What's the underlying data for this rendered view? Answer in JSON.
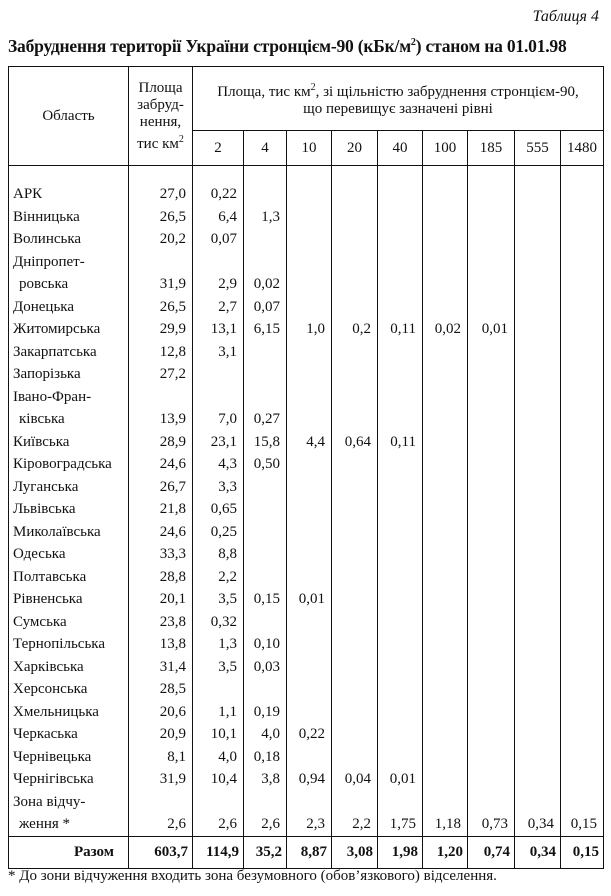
{
  "caption": "Таблиця 4",
  "title": "Забруднення території України стронцієм-90 (кБк/м",
  "title_sup": "2",
  "title_end": ") станом на 01.01.98",
  "header": {
    "region": "Область",
    "area": "Площа забруд-нення, тис км",
    "area_sup": "2",
    "levels_title": "Площа, тис  км",
    "levels_sup": "2",
    "levels_title_end": ", зі щільністю забруднення стронцієм-90,  що перевищує зазначені рівні",
    "levels": [
      "2",
      "4",
      "10",
      "20",
      "40",
      "100",
      "185",
      "555",
      "1480"
    ]
  },
  "rows": [
    {
      "name": [
        "АРК"
      ],
      "v": [
        "27,0",
        "0,22",
        "",
        "",
        "",
        "",
        "",
        "",
        "",
        ""
      ]
    },
    {
      "name": [
        "Вінницька"
      ],
      "v": [
        "26,5",
        "6,4",
        "1,3",
        "",
        "",
        "",
        "",
        "",
        "",
        ""
      ]
    },
    {
      "name": [
        "Волинська"
      ],
      "v": [
        "20,2",
        "0,07",
        "",
        "",
        "",
        "",
        "",
        "",
        "",
        ""
      ]
    },
    {
      "name": [
        "Дніпропет-",
        "ровська"
      ],
      "v": [
        "31,9",
        "2,9",
        "0,02",
        "",
        "",
        "",
        "",
        "",
        "",
        ""
      ]
    },
    {
      "name": [
        "Донецька"
      ],
      "v": [
        "26,5",
        "2,7",
        "0,07",
        "",
        "",
        "",
        "",
        "",
        "",
        ""
      ]
    },
    {
      "name": [
        "Житомирська"
      ],
      "v": [
        "29,9",
        "13,1",
        "6,15",
        "1,0",
        "0,2",
        "0,11",
        "0,02",
        "0,01",
        "",
        ""
      ]
    },
    {
      "name": [
        "Закарпатська"
      ],
      "v": [
        "12,8",
        "3,1",
        "",
        "",
        "",
        "",
        "",
        "",
        "",
        ""
      ]
    },
    {
      "name": [
        "Запорізька"
      ],
      "v": [
        "27,2",
        "",
        "",
        "",
        "",
        "",
        "",
        "",
        "",
        ""
      ]
    },
    {
      "name": [
        "Івано-Фран-",
        "ківська"
      ],
      "v": [
        "13,9",
        "7,0",
        "0,27",
        "",
        "",
        "",
        "",
        "",
        "",
        ""
      ]
    },
    {
      "name": [
        "Київська"
      ],
      "v": [
        "28,9",
        "23,1",
        "15,8",
        "4,4",
        "0,64",
        "0,11",
        "",
        "",
        "",
        ""
      ]
    },
    {
      "name": [
        "Кіровоградська"
      ],
      "v": [
        "24,6",
        "4,3",
        "0,50",
        "",
        "",
        "",
        "",
        "",
        "",
        ""
      ]
    },
    {
      "name": [
        "Луганська"
      ],
      "v": [
        "26,7",
        "3,3",
        "",
        "",
        "",
        "",
        "",
        "",
        "",
        ""
      ]
    },
    {
      "name": [
        "Львівська"
      ],
      "v": [
        "21,8",
        "0,65",
        "",
        "",
        "",
        "",
        "",
        "",
        "",
        ""
      ]
    },
    {
      "name": [
        "Миколаївська"
      ],
      "v": [
        "24,6",
        "0,25",
        "",
        "",
        "",
        "",
        "",
        "",
        "",
        ""
      ]
    },
    {
      "name": [
        "Одеська"
      ],
      "v": [
        "33,3",
        "8,8",
        "",
        "",
        "",
        "",
        "",
        "",
        "",
        ""
      ]
    },
    {
      "name": [
        "Полтавська"
      ],
      "v": [
        "28,8",
        "2,2",
        "",
        "",
        "",
        "",
        "",
        "",
        "",
        ""
      ]
    },
    {
      "name": [
        "Рівненська"
      ],
      "v": [
        "20,1",
        "3,5",
        "0,15",
        "0,01",
        "",
        "",
        "",
        "",
        "",
        ""
      ]
    },
    {
      "name": [
        "Сумська"
      ],
      "v": [
        "23,8",
        "0,32",
        "",
        "",
        "",
        "",
        "",
        "",
        "",
        ""
      ]
    },
    {
      "name": [
        "Тернопільська"
      ],
      "v": [
        "13,8",
        "1,3",
        "0,10",
        "",
        "",
        "",
        "",
        "",
        "",
        ""
      ]
    },
    {
      "name": [
        "Харківська"
      ],
      "v": [
        "31,4",
        "3,5",
        "0,03",
        "",
        "",
        "",
        "",
        "",
        "",
        ""
      ]
    },
    {
      "name": [
        "Херсонська"
      ],
      "v": [
        "28,5",
        "",
        "",
        "",
        "",
        "",
        "",
        "",
        "",
        ""
      ]
    },
    {
      "name": [
        "Хмельницька"
      ],
      "v": [
        "20,6",
        "1,1",
        "0,19",
        "",
        "",
        "",
        "",
        "",
        "",
        ""
      ]
    },
    {
      "name": [
        "Черкаська"
      ],
      "v": [
        "20,9",
        "10,1",
        "4,0",
        "0,22",
        "",
        "",
        "",
        "",
        "",
        ""
      ]
    },
    {
      "name": [
        "Чернівецька"
      ],
      "v": [
        "8,1",
        "4,0",
        "0,18",
        "",
        "",
        "",
        "",
        "",
        "",
        ""
      ]
    },
    {
      "name": [
        "Чернігівська"
      ],
      "v": [
        "31,9",
        "10,4",
        "3,8",
        "0,94",
        "0,04",
        "0,01",
        "",
        "",
        "",
        ""
      ]
    },
    {
      "name": [
        "Зона відчу-",
        "ження *"
      ],
      "v": [
        "2,6",
        "2,6",
        "2,6",
        "2,3",
        "2,2",
        "1,75",
        "1,18",
        "0,73",
        "0,34",
        "0,15"
      ]
    }
  ],
  "total": {
    "name": "Разом",
    "v": [
      "603,7",
      "114,9",
      "35,2",
      "8,87",
      "3,08",
      "1,98",
      "1,20",
      "0,74",
      "0,34",
      "0,15"
    ]
  },
  "footnote": "* До зони відчуження входить зона безумовного (обов’язкового) відселення."
}
